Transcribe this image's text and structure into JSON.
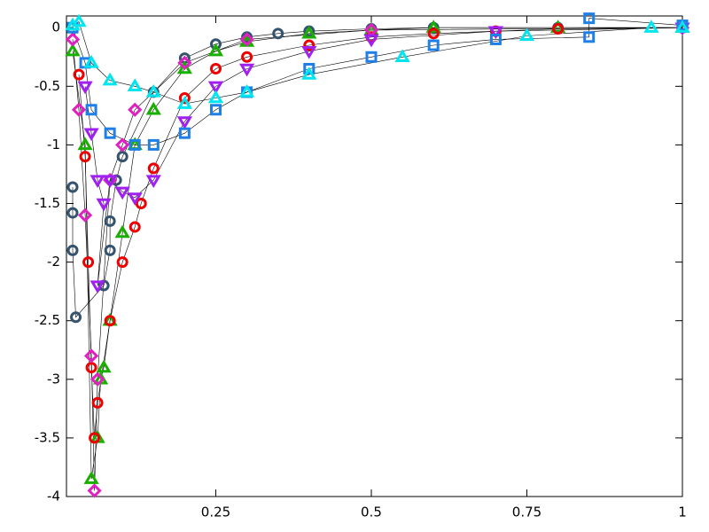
{
  "chart_data": {
    "type": "line",
    "xlim": [
      0.01,
      1
    ],
    "ylim": [
      -4,
      0.1
    ],
    "xticks": [
      0.25,
      0.5,
      0.75,
      1
    ],
    "yticks": [
      0,
      -0.5,
      -1,
      -1.5,
      -2,
      -2.5,
      -3,
      -3.5,
      -4
    ],
    "series": [
      {
        "color": "#34536f",
        "marker": "circle",
        "x": [
          0.02,
          0.02,
          0.02,
          0.025,
          0.07,
          0.08,
          0.08,
          0.09,
          0.1,
          0.15,
          0.2,
          0.25,
          0.3,
          0.35,
          0.4,
          0.5,
          0.6,
          0.8,
          1
        ],
        "values": [
          -1.36,
          -1.58,
          -1.9,
          -2.47,
          -2.2,
          -1.9,
          -1.65,
          -1.3,
          -1.1,
          -0.55,
          -0.26,
          -0.14,
          -0.08,
          -0.05,
          -0.03,
          -0.01,
          0,
          0,
          0
        ]
      },
      {
        "color": "#1aae00",
        "marker": "triangle",
        "x": [
          0.02,
          0.04,
          0.05,
          0.06,
          0.065,
          0.07,
          0.08,
          0.1,
          0.12,
          0.15,
          0.2,
          0.25,
          0.3,
          0.4,
          0.5,
          0.6,
          0.8,
          1
        ],
        "values": [
          -0.2,
          -1.0,
          -3.85,
          -3.5,
          -3.0,
          -2.9,
          -2.5,
          -1.75,
          -1.0,
          -0.7,
          -0.35,
          -0.2,
          -0.12,
          -0.05,
          -0.02,
          0,
          0,
          0
        ]
      },
      {
        "color": "#ee0000",
        "marker": "circle",
        "x": [
          0.03,
          0.04,
          0.045,
          0.05,
          0.055,
          0.06,
          0.08,
          0.1,
          0.12,
          0.13,
          0.15,
          0.2,
          0.25,
          0.3,
          0.4,
          0.5,
          0.6,
          0.7,
          0.8,
          1
        ],
        "values": [
          -0.4,
          -1.1,
          -2.0,
          -2.9,
          -3.5,
          -3.2,
          -2.5,
          -2.0,
          -1.7,
          -1.5,
          -1.2,
          -0.6,
          -0.35,
          -0.25,
          -0.15,
          -0.08,
          -0.05,
          -0.03,
          -0.01,
          0
        ]
      },
      {
        "color": "#e020c0",
        "marker": "diamond",
        "x": [
          0.02,
          0.03,
          0.04,
          0.05,
          0.055,
          0.06,
          0.08,
          0.1,
          0.12,
          0.2,
          0.3,
          0.5,
          1
        ],
        "values": [
          -0.1,
          -0.7,
          -1.6,
          -2.8,
          -3.95,
          -3.0,
          -1.3,
          -1.0,
          -0.7,
          -0.3,
          -0.1,
          -0.02,
          0
        ]
      },
      {
        "color": "#a020f0",
        "marker": "itriangle",
        "x": [
          0.04,
          0.05,
          0.06,
          0.07,
          0.06,
          0.08,
          0.1,
          0.12,
          0.15,
          0.2,
          0.25,
          0.3,
          0.4,
          0.5,
          0.7,
          1
        ],
        "values": [
          -0.5,
          -0.9,
          -1.3,
          -1.5,
          -2.2,
          -1.3,
          -1.4,
          -1.45,
          -1.3,
          -0.8,
          -0.5,
          -0.35,
          -0.2,
          -0.1,
          -0.03,
          0
        ]
      },
      {
        "color": "#1e7fe6",
        "marker": "square",
        "x": [
          0.02,
          0.04,
          0.05,
          0.08,
          0.12,
          0.15,
          0.2,
          0.25,
          0.3,
          0.4,
          0.5,
          0.6,
          0.7,
          0.85,
          0.85,
          1
        ],
        "values": [
          0,
          -0.3,
          -0.7,
          -0.9,
          -1.0,
          -1.0,
          -0.9,
          -0.7,
          -0.55,
          -0.35,
          -0.25,
          -0.15,
          -0.1,
          -0.08,
          0.08,
          0.02
        ]
      },
      {
        "color": "#00e5ee",
        "marker": "triangle",
        "x": [
          0.02,
          0.03,
          0.05,
          0.08,
          0.12,
          0.15,
          0.2,
          0.25,
          0.3,
          0.4,
          0.55,
          0.75,
          0.95,
          1
        ],
        "values": [
          0.02,
          0.05,
          -0.3,
          -0.45,
          -0.5,
          -0.55,
          -0.65,
          -0.6,
          -0.55,
          -0.4,
          -0.25,
          -0.07,
          0,
          0
        ]
      }
    ]
  }
}
